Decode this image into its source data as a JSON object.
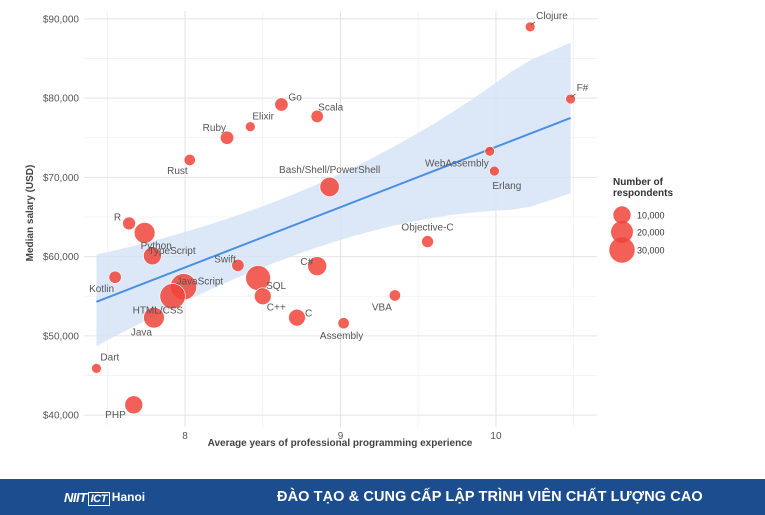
{
  "chart_data": {
    "type": "scatter",
    "xlabel": "Average years of professional programming experience",
    "ylabel": "Median salary (USD)",
    "xlim": [
      7.35,
      10.65
    ],
    "ylim": [
      38500,
      91000
    ],
    "x_ticks": [
      8,
      9,
      10
    ],
    "y_ticks": [
      40000,
      50000,
      60000,
      70000,
      80000,
      90000
    ],
    "y_tick_labels": [
      "$40,000",
      "$50,000",
      "$60,000",
      "$70,000",
      "$80,000",
      "$90,000"
    ],
    "trend": {
      "x": [
        7.43,
        10.48
      ],
      "y": [
        54300,
        77500
      ],
      "band_low": [
        48000,
        68000
      ],
      "band_high": [
        61000,
        87000
      ]
    },
    "points": [
      {
        "lang": "Clojure",
        "x": 10.22,
        "y": 89000,
        "n": 1000
      },
      {
        "lang": "F#",
        "x": 10.48,
        "y": 79900,
        "n": 1000
      },
      {
        "lang": "Go",
        "x": 8.62,
        "y": 79200,
        "n": 4000
      },
      {
        "lang": "Scala",
        "x": 8.85,
        "y": 77700,
        "n": 3000
      },
      {
        "lang": "Elixir",
        "x": 8.42,
        "y": 76400,
        "n": 1000
      },
      {
        "lang": "Ruby",
        "x": 8.27,
        "y": 75000,
        "n": 4000
      },
      {
        "lang": "Rust",
        "x": 8.03,
        "y": 72200,
        "n": 2000
      },
      {
        "lang": "WebAssembly",
        "x": 9.96,
        "y": 73300,
        "n": 1000
      },
      {
        "lang": "Erlang",
        "x": 9.99,
        "y": 70800,
        "n": 1000
      },
      {
        "lang": "Bash/Shell/PowerShell",
        "x": 8.93,
        "y": 68800,
        "n": 14000
      },
      {
        "lang": "R",
        "x": 7.64,
        "y": 64200,
        "n": 3500
      },
      {
        "lang": "Python",
        "x": 7.74,
        "y": 63000,
        "n": 17000
      },
      {
        "lang": "Objective-C",
        "x": 9.56,
        "y": 61900,
        "n": 2500
      },
      {
        "lang": "Swift",
        "x": 8.34,
        "y": 58900,
        "n": 3000
      },
      {
        "lang": "C#",
        "x": 8.85,
        "y": 58800,
        "n": 13000
      },
      {
        "lang": "TypeScript",
        "x": 7.79,
        "y": 60100,
        "n": 11000
      },
      {
        "lang": "Kotlin",
        "x": 7.55,
        "y": 57400,
        "n": 3000
      },
      {
        "lang": "SQL",
        "x": 8.47,
        "y": 57300,
        "n": 28000
      },
      {
        "lang": "JavaScript",
        "x": 7.99,
        "y": 56200,
        "n": 33000
      },
      {
        "lang": "HTML/CSS",
        "x": 7.92,
        "y": 55000,
        "n": 30000
      },
      {
        "lang": "C++",
        "x": 8.5,
        "y": 55000,
        "n": 9000
      },
      {
        "lang": "VBA",
        "x": 9.35,
        "y": 55100,
        "n": 2000
      },
      {
        "lang": "Java",
        "x": 7.8,
        "y": 52300,
        "n": 17000
      },
      {
        "lang": "C",
        "x": 8.72,
        "y": 52300,
        "n": 9000
      },
      {
        "lang": "Assembly",
        "x": 9.02,
        "y": 51600,
        "n": 2000
      },
      {
        "lang": "Dart",
        "x": 7.43,
        "y": 45900,
        "n": 1000
      },
      {
        "lang": "PHP",
        "x": 7.67,
        "y": 41300,
        "n": 11000
      }
    ],
    "legend": {
      "title": "Number of respondents",
      "title_lines": [
        "Number of",
        "respondents"
      ],
      "sizes": [
        10000,
        20000,
        30000
      ],
      "labels": [
        "10,000",
        "20,000",
        "30,000"
      ],
      "position": "right"
    },
    "colors": {
      "point": "#f0443a",
      "trend": "#4a90e2",
      "band": "#d6e4f7"
    }
  },
  "footer": {
    "logo_word": "NIIT",
    "logo_number": "ICT",
    "logo_city": "Hanoi",
    "slogan": "ĐÀO TẠO & CUNG CẤP LẬP TRÌNH VIÊN CHẤT LƯỢNG CAO"
  }
}
